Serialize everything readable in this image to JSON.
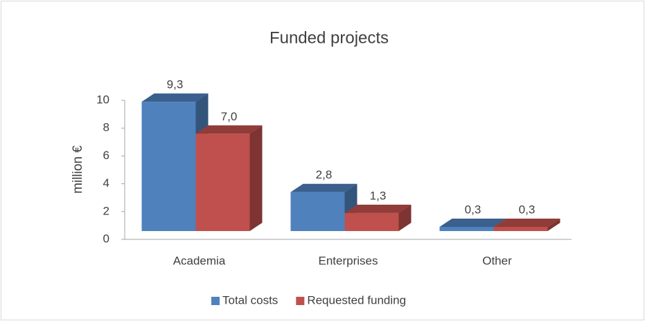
{
  "chart_data": {
    "type": "bar3d",
    "title": "Funded projects",
    "y_label": "million €",
    "categories": [
      "Academia",
      "Enterprises",
      "Other"
    ],
    "series": [
      {
        "name": "Total costs",
        "color": "#4f81bd",
        "values": [
          9.3,
          2.8,
          0.3
        ],
        "value_labels": [
          "9,3",
          "2,8",
          "0,3"
        ]
      },
      {
        "name": "Requested funding",
        "color": "#c0504d",
        "values": [
          7.0,
          1.3,
          0.3
        ],
        "value_labels": [
          "7,0",
          "1,3",
          "0,3"
        ]
      }
    ],
    "ylim": [
      0,
      10
    ],
    "yticks": [
      0,
      2,
      4,
      6,
      8,
      10
    ],
    "grid": false,
    "legend": "bottom"
  }
}
